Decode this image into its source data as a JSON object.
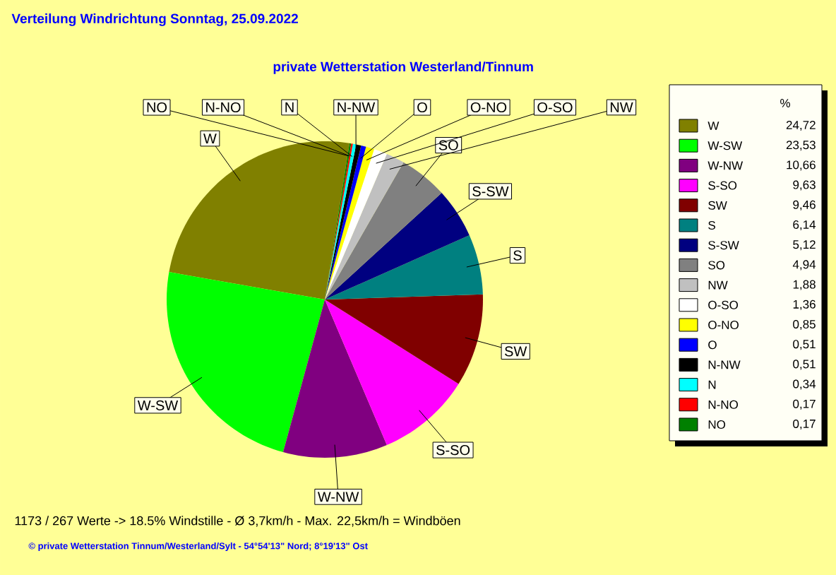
{
  "chart_data": {
    "type": "pie",
    "title": "Verteilung Windrichtung   Sonntag, 25.09.2022",
    "subtitle": "private Wetterstation Westerland/Tinnum",
    "legend_title": "%",
    "legend": "right",
    "categories": [
      "W",
      "W-SW",
      "W-NW",
      "S-SO",
      "SW",
      "S",
      "S-SW",
      "SO",
      "NW",
      "O-SO",
      "O-NO",
      "O",
      "N-NW",
      "N",
      "N-NO",
      "NO"
    ],
    "values": [
      24.72,
      23.53,
      10.66,
      9.63,
      9.46,
      6.14,
      5.12,
      4.94,
      1.88,
      1.36,
      0.85,
      0.51,
      0.51,
      0.34,
      0.17,
      0.17
    ],
    "value_labels": [
      "24,72",
      "23,53",
      "10,66",
      "9,63",
      "9,46",
      "6,14",
      "5,12",
      "4,94",
      "1,88",
      "1,36",
      "0,85",
      "0,51",
      "0,51",
      "0,34",
      "0,17",
      "0,17"
    ],
    "colors": [
      "#808000",
      "#00ff00",
      "#800080",
      "#ff00ff",
      "#800000",
      "#008080",
      "#000080",
      "#808080",
      "#c0c0c0",
      "#ffffff",
      "#ffff00",
      "#0000ff",
      "#000000",
      "#00ffff",
      "#ff0000",
      "#008000"
    ],
    "annotations": [
      "1173 / 267 Werte  -> 18.5% Windstille   -   Ø 3,7km/h  -  Max. 22,5km/h = Windböen",
      "© private Wetterstation Tinnum/Westerland/Sylt   -   54°54'13\" Nord; 8°19'13\" Ost"
    ]
  }
}
